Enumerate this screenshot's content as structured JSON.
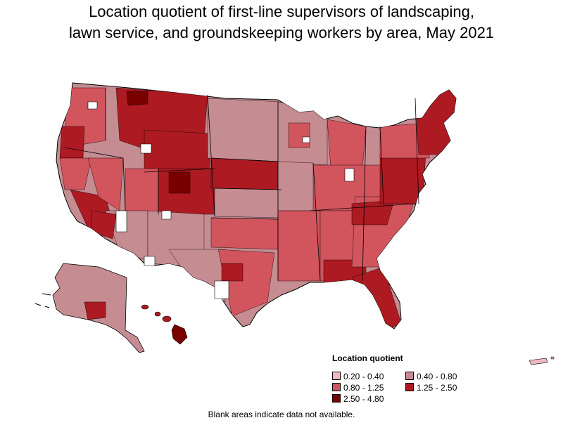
{
  "title": {
    "line1": "Location quotient of first-line supervisors of landscaping,",
    "line2": "lawn service, and groundskeeping workers by area, May 2021"
  },
  "legend": {
    "title": "Location quotient",
    "items": [
      {
        "label": "0.20 - 0.40",
        "color": "#f0b7bd"
      },
      {
        "label": "0.40 - 0.80",
        "color": "#c58c92"
      },
      {
        "label": "0.80 - 1.25",
        "color": "#d2545d"
      },
      {
        "label": "1.25 - 2.50",
        "color": "#ad1a22"
      },
      {
        "label": "2.50 - 4.80",
        "color": "#7a0000"
      }
    ]
  },
  "footnote": "Blank areas indicate data not available.",
  "colors": {
    "border": "#000000",
    "no_data": "#ffffff"
  }
}
